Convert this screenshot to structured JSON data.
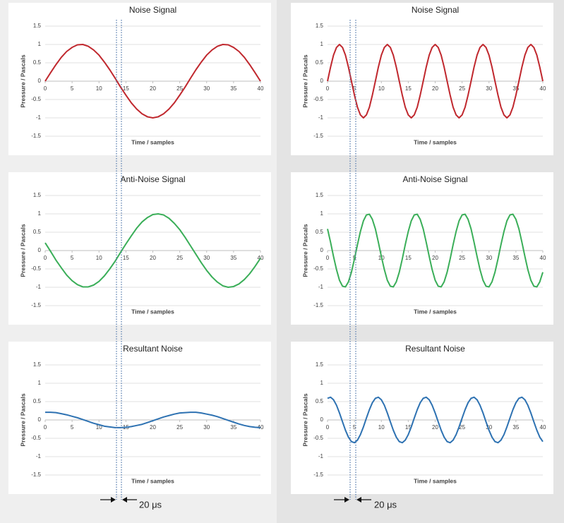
{
  "chart_data": [
    {
      "type": "line",
      "title": "Noise Signal",
      "x_label": "Time / samples",
      "y_label": "Pressure / Pascals",
      "color": "#c0282e",
      "x": [
        0,
        1,
        2,
        3,
        4,
        5,
        6,
        7,
        8,
        9,
        10,
        11,
        12,
        13,
        14,
        15,
        16,
        17,
        18,
        19,
        20,
        21,
        22,
        23,
        24,
        25,
        26,
        27,
        28,
        29,
        30,
        31,
        32,
        33,
        34,
        35,
        36,
        37,
        38,
        39,
        40
      ],
      "values": [
        0,
        0.23,
        0.45,
        0.65,
        0.81,
        0.92,
        0.99,
        1,
        0.95,
        0.85,
        0.71,
        0.52,
        0.31,
        0.08,
        -0.16,
        -0.38,
        -0.59,
        -0.76,
        -0.89,
        -0.97,
        -1,
        -0.97,
        -0.89,
        -0.76,
        -0.59,
        -0.38,
        -0.16,
        0.08,
        0.31,
        0.52,
        0.71,
        0.85,
        0.95,
        1,
        0.99,
        0.92,
        0.81,
        0.65,
        0.45,
        0.23,
        0
      ],
      "xlim": [
        0,
        40
      ],
      "xticks": [
        0,
        5,
        10,
        15,
        20,
        25,
        30,
        35,
        40
      ],
      "ylim": [
        -1.5,
        1.5
      ],
      "yticks": [
        1.5,
        1,
        0.5,
        0,
        -0.5,
        -1,
        -1.5
      ],
      "grid": true
    },
    {
      "type": "line",
      "title": "Anti-Noise Signal",
      "x_label": "Time / samples",
      "y_label": "Pressure / Pascals",
      "color": "#3aae58",
      "x": [
        0,
        1,
        2,
        3,
        4,
        5,
        6,
        7,
        8,
        9,
        10,
        11,
        12,
        13,
        14,
        15,
        16,
        17,
        18,
        19,
        20,
        21,
        22,
        23,
        24,
        25,
        26,
        27,
        28,
        29,
        30,
        31,
        32,
        33,
        34,
        35,
        36,
        37,
        38,
        39,
        40
      ],
      "values": [
        0.21,
        -0.02,
        -0.26,
        -0.47,
        -0.67,
        -0.82,
        -0.93,
        -0.99,
        -0.99,
        -0.94,
        -0.84,
        -0.69,
        -0.5,
        -0.29,
        -0.05,
        0.18,
        0.4,
        0.61,
        0.78,
        0.9,
        0.98,
        1,
        0.97,
        0.88,
        0.74,
        0.57,
        0.36,
        0.13,
        -0.1,
        -0.33,
        -0.54,
        -0.72,
        -0.86,
        -0.96,
        -1,
        -0.98,
        -0.91,
        -0.79,
        -0.63,
        -0.43,
        -0.21
      ],
      "xlim": [
        0,
        40
      ],
      "xticks": [
        0,
        5,
        10,
        15,
        20,
        25,
        30,
        35,
        40
      ],
      "ylim": [
        -1.5,
        1.5
      ],
      "yticks": [
        1.5,
        1,
        0.5,
        0,
        -0.5,
        -1,
        -1.5
      ],
      "grid": true
    },
    {
      "type": "line",
      "title": "Resultant Noise",
      "x_label": "Time / samples",
      "y_label": "Pressure / Pascals",
      "color": "#2e72b2",
      "annotation": "20 μs",
      "x": [
        0,
        1,
        2,
        3,
        4,
        5,
        6,
        7,
        8,
        9,
        10,
        11,
        12,
        13,
        14,
        15,
        16,
        17,
        18,
        19,
        20,
        21,
        22,
        23,
        24,
        25,
        26,
        27,
        28,
        29,
        30,
        31,
        32,
        33,
        34,
        35,
        36,
        37,
        38,
        39,
        40
      ],
      "values": [
        0.21,
        0.21,
        0.2,
        0.17,
        0.14,
        0.1,
        0.06,
        0.01,
        -0.04,
        -0.09,
        -0.13,
        -0.17,
        -0.19,
        -0.21,
        -0.21,
        -0.2,
        -0.18,
        -0.15,
        -0.12,
        -0.07,
        -0.02,
        0.03,
        0.08,
        0.12,
        0.16,
        0.19,
        0.2,
        0.21,
        0.21,
        0.19,
        0.16,
        0.13,
        0.09,
        0.04,
        -0.01,
        -0.06,
        -0.11,
        -0.15,
        -0.18,
        -0.2,
        -0.21
      ],
      "xlim": [
        0,
        40
      ],
      "xticks": [
        0,
        5,
        10,
        15,
        20,
        25,
        30,
        35,
        40
      ],
      "ylim": [
        -1.5,
        1.5
      ],
      "yticks": [
        1.5,
        1,
        0.5,
        0,
        -0.5,
        -1,
        -1.5
      ],
      "grid": true
    },
    {
      "type": "line",
      "title": "Noise Signal",
      "x_label": "Time / samples",
      "y_label": "Pressure / Pascals",
      "color": "#c0282e",
      "x": [
        0,
        0.56,
        1.11,
        1.67,
        2.22,
        2.78,
        3.33,
        3.89,
        4.44,
        5,
        5.56,
        6.11,
        6.67,
        7.22,
        7.78,
        8.33,
        8.89,
        9.44,
        10,
        10.56,
        11.11,
        11.67,
        12.22,
        12.78,
        13.33,
        13.89,
        14.44,
        15,
        15.56,
        16.11,
        16.67,
        17.22,
        17.78,
        18.33,
        18.89,
        19.44,
        20,
        20.56,
        21.11,
        21.67,
        22.22,
        22.78,
        23.33,
        23.89,
        24.44,
        25,
        25.56,
        26.11,
        26.67,
        27.22,
        27.78,
        28.33,
        28.89,
        29.44,
        30,
        30.56,
        31.11,
        31.67,
        32.22,
        32.78,
        33.33,
        33.89,
        34.44,
        35,
        35.56,
        36.11,
        36.67,
        37.22,
        37.78,
        38.33,
        38.89,
        39.44,
        40
      ],
      "values": [
        0,
        0.38,
        0.71,
        0.92,
        1,
        0.92,
        0.71,
        0.38,
        0,
        -0.38,
        -0.71,
        -0.92,
        -1,
        -0.92,
        -0.71,
        -0.38,
        0,
        0.38,
        0.71,
        0.92,
        1,
        0.92,
        0.71,
        0.38,
        0,
        -0.38,
        -0.71,
        -0.92,
        -1,
        -0.92,
        -0.71,
        -0.38,
        0,
        0.38,
        0.71,
        0.92,
        1,
        0.92,
        0.71,
        0.38,
        0,
        -0.38,
        -0.71,
        -0.92,
        -1,
        -0.92,
        -0.71,
        -0.38,
        0,
        0.38,
        0.71,
        0.92,
        1,
        0.92,
        0.71,
        0.38,
        0,
        -0.38,
        -0.71,
        -0.92,
        -1,
        -0.92,
        -0.71,
        -0.38,
        0,
        0.38,
        0.71,
        0.92,
        1,
        0.92,
        0.71,
        0.38,
        0
      ],
      "xlim": [
        0,
        40
      ],
      "xticks": [
        0,
        5,
        10,
        15,
        20,
        25,
        30,
        35,
        40
      ],
      "ylim": [
        -1.5,
        1.5
      ],
      "yticks": [
        1.5,
        1,
        0.5,
        0,
        -0.5,
        -1,
        -1.5
      ],
      "grid": true
    },
    {
      "type": "line",
      "title": "Anti-Noise Signal",
      "x_label": "Time / samples",
      "y_label": "Pressure / Pascals",
      "color": "#3aae58",
      "x": [
        0,
        0.56,
        1.11,
        1.67,
        2.22,
        2.78,
        3.33,
        3.89,
        4.44,
        5,
        5.56,
        6.11,
        6.67,
        7.22,
        7.78,
        8.33,
        8.89,
        9.44,
        10,
        10.56,
        11.11,
        11.67,
        12.22,
        12.78,
        13.33,
        13.89,
        14.44,
        15,
        15.56,
        16.11,
        16.67,
        17.22,
        17.78,
        18.33,
        18.89,
        19.44,
        20,
        20.56,
        21.11,
        21.67,
        22.22,
        22.78,
        23.33,
        23.89,
        24.44,
        25,
        25.56,
        26.11,
        26.67,
        27.22,
        27.78,
        28.33,
        28.89,
        29.44,
        30,
        30.56,
        31.11,
        31.67,
        32.22,
        32.78,
        33.33,
        33.89,
        34.44,
        35,
        35.56,
        36.11,
        36.67,
        37.22,
        37.78,
        38.33,
        38.89,
        39.44,
        40
      ],
      "values": [
        0.59,
        0.23,
        -0.16,
        -0.52,
        -0.81,
        -0.97,
        -0.99,
        -0.85,
        -0.59,
        -0.23,
        0.16,
        0.52,
        0.81,
        0.97,
        0.99,
        0.85,
        0.59,
        0.23,
        -0.16,
        -0.52,
        -0.81,
        -0.97,
        -0.99,
        -0.85,
        -0.59,
        -0.23,
        0.16,
        0.52,
        0.81,
        0.97,
        0.99,
        0.85,
        0.59,
        0.23,
        -0.16,
        -0.52,
        -0.81,
        -0.97,
        -0.99,
        -0.85,
        -0.59,
        -0.23,
        0.16,
        0.52,
        0.81,
        0.97,
        0.99,
        0.85,
        0.59,
        0.23,
        -0.16,
        -0.52,
        -0.81,
        -0.97,
        -0.99,
        -0.85,
        -0.59,
        -0.23,
        0.16,
        0.52,
        0.81,
        0.97,
        0.99,
        0.85,
        0.59,
        0.23,
        -0.16,
        -0.52,
        -0.81,
        -0.97,
        -0.99,
        -0.85,
        -0.59
      ],
      "xlim": [
        0,
        40
      ],
      "xticks": [
        0,
        5,
        10,
        15,
        20,
        25,
        30,
        35,
        40
      ],
      "ylim": [
        -1.5,
        1.5
      ],
      "yticks": [
        1.5,
        1,
        0.5,
        0,
        -0.5,
        -1,
        -1.5
      ],
      "grid": true
    },
    {
      "type": "line",
      "title": "Resultant Noise",
      "x_label": "Time / samples",
      "y_label": "Pressure / Pascals",
      "color": "#2e72b2",
      "annotation": "20 μs",
      "x": [
        0,
        0.56,
        1.11,
        1.67,
        2.22,
        2.78,
        3.33,
        3.89,
        4.44,
        5,
        5.56,
        6.11,
        6.67,
        7.22,
        7.78,
        8.33,
        8.89,
        9.44,
        10,
        10.56,
        11.11,
        11.67,
        12.22,
        12.78,
        13.33,
        13.89,
        14.44,
        15,
        15.56,
        16.11,
        16.67,
        17.22,
        17.78,
        18.33,
        18.89,
        19.44,
        20,
        20.56,
        21.11,
        21.67,
        22.22,
        22.78,
        23.33,
        23.89,
        24.44,
        25,
        25.56,
        26.11,
        26.67,
        27.22,
        27.78,
        28.33,
        28.89,
        29.44,
        30,
        30.56,
        31.11,
        31.67,
        32.22,
        32.78,
        33.33,
        33.89,
        34.44,
        35,
        35.56,
        36.11,
        36.67,
        37.22,
        37.78,
        38.33,
        38.89,
        39.44,
        40
      ],
      "values": [
        0.59,
        0.62,
        0.55,
        0.4,
        0.19,
        -0.05,
        -0.28,
        -0.47,
        -0.59,
        -0.62,
        -0.55,
        -0.4,
        -0.19,
        0.05,
        0.28,
        0.47,
        0.59,
        0.62,
        0.55,
        0.4,
        0.19,
        -0.05,
        -0.28,
        -0.47,
        -0.59,
        -0.62,
        -0.55,
        -0.4,
        -0.19,
        0.05,
        0.28,
        0.47,
        0.59,
        0.62,
        0.55,
        0.4,
        0.19,
        -0.05,
        -0.28,
        -0.47,
        -0.59,
        -0.62,
        -0.55,
        -0.4,
        -0.19,
        0.05,
        0.28,
        0.47,
        0.59,
        0.62,
        0.55,
        0.4,
        0.19,
        -0.05,
        -0.28,
        -0.47,
        -0.59,
        -0.62,
        -0.55,
        -0.4,
        -0.19,
        0.05,
        0.28,
        0.47,
        0.59,
        0.62,
        0.55,
        0.4,
        0.19,
        -0.05,
        -0.28,
        -0.47,
        -0.59
      ],
      "xlim": [
        0,
        40
      ],
      "xticks": [
        0,
        5,
        10,
        15,
        20,
        25,
        30,
        35,
        40
      ],
      "ylim": [
        -1.5,
        1.5
      ],
      "yticks": [
        1.5,
        1,
        0.5,
        0,
        -0.5,
        -1,
        -1.5
      ],
      "grid": true
    }
  ]
}
